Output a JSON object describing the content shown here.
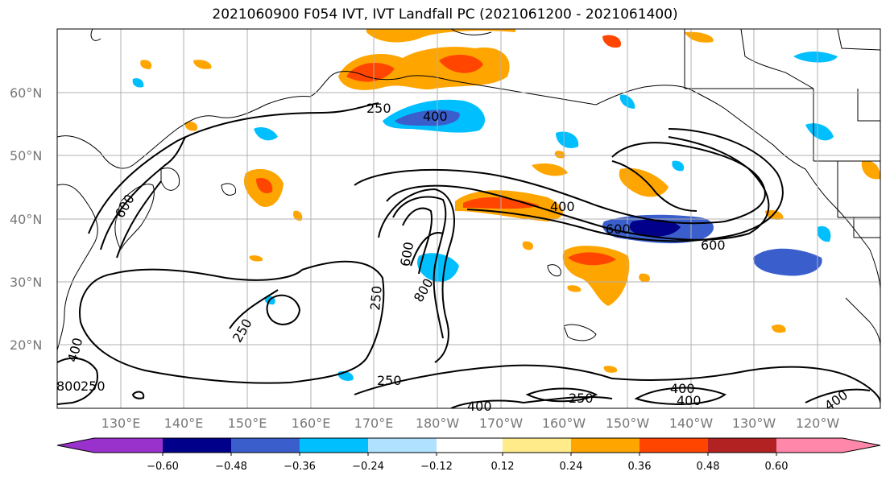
{
  "title": "2021060900 F054 IVT, IVT Landfall PC (2021061200 - 2021061400)",
  "map": {
    "lat_labels": [
      "60°N",
      "50°N",
      "40°N",
      "30°N",
      "20°N"
    ],
    "lon_labels": [
      "130°E",
      "140°E",
      "150°E",
      "160°E",
      "170°E",
      "180°W",
      "170°W",
      "160°W",
      "150°W",
      "140°W",
      "130°W",
      "120°W"
    ],
    "contour_labels": [
      "250",
      "400",
      "600",
      "400",
      "600",
      "600",
      "600",
      "800",
      "250",
      "250",
      "250",
      "400",
      "400",
      "400",
      "250",
      "400",
      "400",
      "800",
      "250"
    ]
  },
  "colorbar": {
    "colors": [
      "#9932cc",
      "#00008b",
      "#3a5fcd",
      "#00bfff",
      "#b0e2ff",
      "#ffffff",
      "#ffeb8a",
      "#ffa500",
      "#ff4500",
      "#b22222",
      "#ff88aa"
    ],
    "tick_labels": [
      "−0.60",
      "−0.48",
      "−0.36",
      "−0.24",
      "−0.12",
      "0.12",
      "0.24",
      "0.36",
      "0.48",
      "0.60"
    ]
  }
}
